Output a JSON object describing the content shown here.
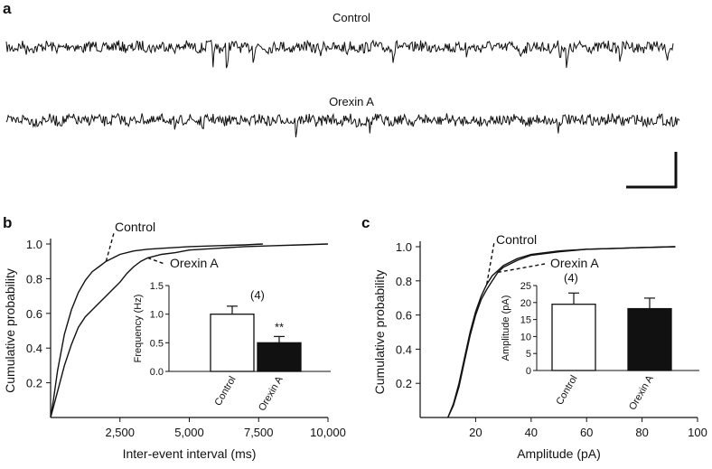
{
  "panel_a": {
    "letter": "a",
    "traces": [
      {
        "label": "Control",
        "events": [
          [
            0.03,
            6
          ],
          [
            0.31,
            18
          ],
          [
            0.33,
            26
          ],
          [
            0.37,
            14
          ],
          [
            0.47,
            10
          ],
          [
            0.51,
            9
          ],
          [
            0.58,
            16
          ],
          [
            0.69,
            12
          ],
          [
            0.77,
            12
          ],
          [
            0.83,
            11
          ],
          [
            0.84,
            26
          ],
          [
            0.92,
            11
          ],
          [
            0.99,
            14
          ]
        ]
      },
      {
        "label": "Orexin A",
        "events": [
          [
            0.25,
            14
          ],
          [
            0.29,
            9
          ],
          [
            0.43,
            13
          ],
          [
            0.52,
            8
          ],
          [
            0.54,
            9
          ],
          [
            0.69,
            6
          ],
          [
            0.82,
            9
          ]
        ]
      }
    ]
  },
  "chart_data": [
    {
      "type": "line",
      "panel": "b",
      "xlabel": "Inter-event interval (ms)",
      "ylabel": "Cumulative probability",
      "xlim": [
        0,
        10000
      ],
      "ylim": [
        0,
        1.0
      ],
      "xticks": [
        "2,500",
        "5,000",
        "7,500",
        "10,000"
      ],
      "xtick_values": [
        2500,
        5000,
        7500,
        10000
      ],
      "yticks": [
        "0.2",
        "0.4",
        "0.6",
        "0.8",
        "1.0"
      ],
      "ytick_values": [
        0.2,
        0.4,
        0.6,
        0.8,
        1.0
      ],
      "series": [
        {
          "name": "Control",
          "x": [
            0,
            100,
            250,
            500,
            750,
            1000,
            1250,
            1500,
            1750,
            2000,
            2250,
            2500,
            3000,
            3500,
            4000,
            5000,
            6000,
            7000,
            7650
          ],
          "y": [
            0,
            0.1,
            0.27,
            0.48,
            0.62,
            0.72,
            0.79,
            0.84,
            0.87,
            0.9,
            0.92,
            0.94,
            0.96,
            0.97,
            0.975,
            0.985,
            0.99,
            0.995,
            1.0
          ]
        },
        {
          "name": "Orexin A",
          "x": [
            0,
            100,
            250,
            500,
            750,
            1000,
            1250,
            1500,
            1750,
            2000,
            2250,
            2500,
            2750,
            3000,
            3250,
            3500,
            4000,
            4500,
            5000,
            6000,
            7000,
            8000,
            9000,
            10000
          ],
          "y": [
            0,
            0.06,
            0.15,
            0.3,
            0.42,
            0.52,
            0.58,
            0.62,
            0.66,
            0.7,
            0.74,
            0.78,
            0.83,
            0.87,
            0.9,
            0.92,
            0.94,
            0.95,
            0.965,
            0.975,
            0.985,
            0.99,
            0.995,
            1.0
          ]
        }
      ],
      "curve_labels": [
        {
          "text": "Control",
          "series": "Control",
          "at_x": 2000
        },
        {
          "text": "Orexin A",
          "series": "Orexin A",
          "at_x": 3500
        }
      ],
      "inset": {
        "type": "bar",
        "ylabel": "Frequency (Hz)",
        "ylim": [
          0,
          1.5
        ],
        "yticks": [
          "0.0",
          "0.5",
          "1.0",
          "1.5"
        ],
        "ytick_values": [
          0,
          0.5,
          1.0,
          1.5
        ],
        "categories": [
          "Control",
          "Orexin A"
        ],
        "values": [
          1.0,
          0.5
        ],
        "errors": [
          0.14,
          0.11
        ],
        "fills": [
          "#ffffff",
          "#111111"
        ],
        "n_label": "(4)",
        "significance": "**"
      }
    },
    {
      "type": "line",
      "panel": "c",
      "xlabel": "Amplitude (pA)",
      "ylabel": "Cumulative probability",
      "xlim": [
        0,
        100
      ],
      "ylim": [
        0,
        1.0
      ],
      "xticks": [
        "20",
        "40",
        "60",
        "80",
        "100"
      ],
      "xtick_values": [
        20,
        40,
        60,
        80,
        100
      ],
      "yticks": [
        "0.2",
        "0.4",
        "0.6",
        "0.8",
        "1.0"
      ],
      "ytick_values": [
        0.2,
        0.4,
        0.6,
        0.8,
        1.0
      ],
      "series": [
        {
          "name": "Control",
          "x": [
            10,
            12,
            14,
            16,
            18,
            20,
            22,
            24,
            26,
            28,
            30,
            35,
            40,
            50,
            60,
            70,
            80,
            92
          ],
          "y": [
            0,
            0.08,
            0.2,
            0.35,
            0.5,
            0.62,
            0.71,
            0.78,
            0.83,
            0.86,
            0.89,
            0.93,
            0.955,
            0.975,
            0.985,
            0.99,
            0.995,
            1.0
          ]
        },
        {
          "name": "Orexin A",
          "x": [
            10,
            12,
            14,
            16,
            18,
            20,
            22,
            24,
            26,
            28,
            30,
            35,
            40,
            50,
            60,
            70,
            80,
            92
          ],
          "y": [
            0,
            0.07,
            0.18,
            0.33,
            0.48,
            0.6,
            0.69,
            0.75,
            0.8,
            0.85,
            0.88,
            0.92,
            0.95,
            0.97,
            0.985,
            0.99,
            0.995,
            1.0
          ]
        }
      ],
      "curve_labels": [
        {
          "text": "Control",
          "series": "Control",
          "at_x": 24
        },
        {
          "text": "Orexin A",
          "series": "Orexin A",
          "at_x": 28
        }
      ],
      "inset": {
        "type": "bar",
        "ylabel": "Amplitude (pA)",
        "ylim": [
          0,
          25
        ],
        "yticks": [
          "0",
          "5",
          "10",
          "15",
          "20",
          "25"
        ],
        "ytick_values": [
          0,
          5,
          10,
          15,
          20,
          25
        ],
        "categories": [
          "Control",
          "Orexin A"
        ],
        "values": [
          19.5,
          18.2
        ],
        "errors": [
          3.3,
          3.1
        ],
        "fills": [
          "#ffffff",
          "#111111"
        ],
        "n_label": "(4)",
        "significance": ""
      }
    }
  ]
}
